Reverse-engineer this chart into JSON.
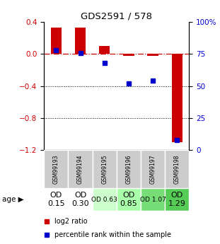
{
  "title": "GDS2591 / 578",
  "samples": [
    "GSM99193",
    "GSM99194",
    "GSM99195",
    "GSM99196",
    "GSM99197",
    "GSM99198"
  ],
  "log2_ratio": [
    0.33,
    0.33,
    0.1,
    -0.02,
    -0.02,
    -1.1
  ],
  "percentile_rank": [
    78,
    76,
    68,
    52,
    54,
    8
  ],
  "ylim_left": [
    -1.2,
    0.4
  ],
  "ylim_right": [
    0,
    100
  ],
  "yticks_left": [
    0.4,
    0.0,
    -0.4,
    -0.8,
    -1.2
  ],
  "yticks_right": [
    100,
    75,
    50,
    25,
    0
  ],
  "bar_color": "#cc0000",
  "dot_color": "#0000cc",
  "dashed_line_color": "#cc0000",
  "row1_bg": "#cccccc",
  "od_values": [
    "OD\n0.15",
    "OD\n0.30",
    "OD 0.63",
    "OD\n0.85",
    "OD 1.07",
    "OD\n1.29"
  ],
  "od_bg": [
    "#ffffff",
    "#ffffff",
    "#ccffcc",
    "#aaffaa",
    "#77dd77",
    "#55cc55"
  ],
  "od_fontsize": [
    8,
    8,
    6.5,
    8,
    6.5,
    8
  ],
  "legend_red": "log2 ratio",
  "legend_blue": "percentile rank within the sample"
}
